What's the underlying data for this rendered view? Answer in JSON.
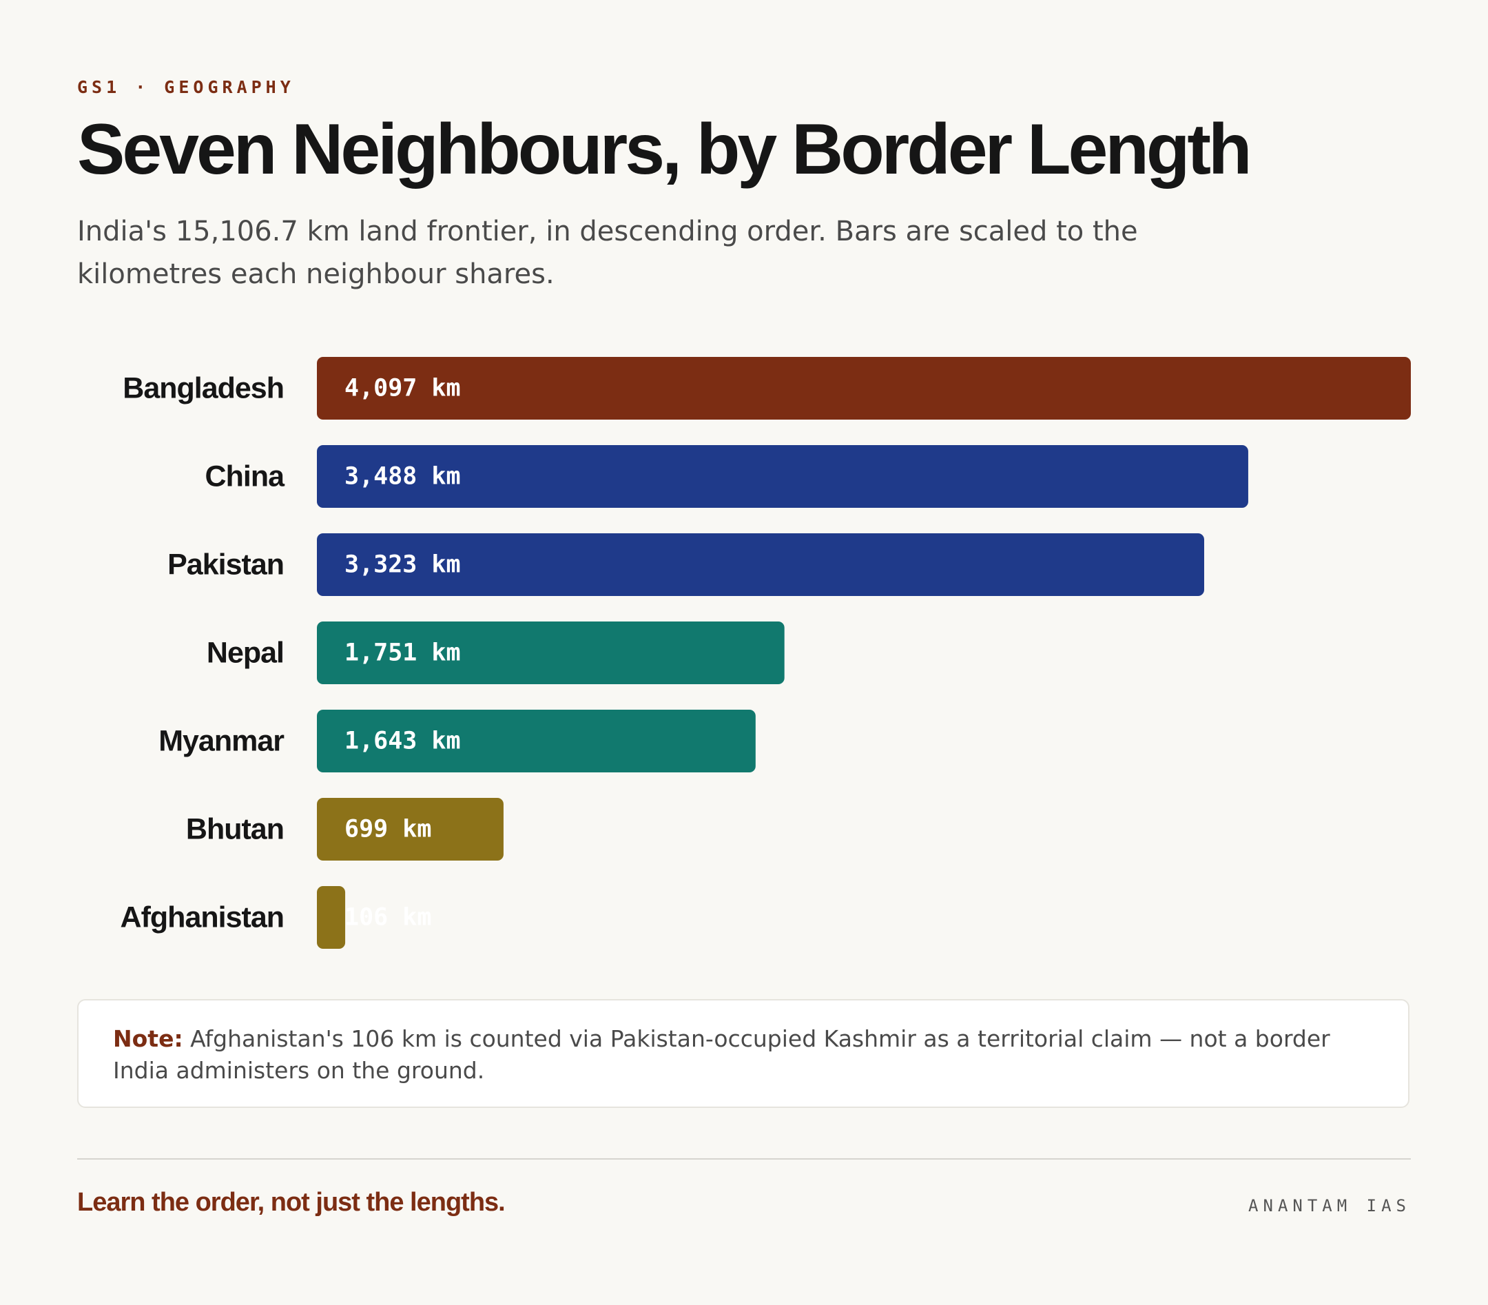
{
  "header": {
    "eyebrow": "GS1 · GEOGRAPHY",
    "title": "Seven Neighbours, by Border Length",
    "subtitle": "India's 15,106.7 km land frontier, in descending order. Bars are scaled to the kilometres each neighbour shares."
  },
  "chart_data": {
    "type": "bar",
    "orientation": "horizontal",
    "categories": [
      "Bangladesh",
      "China",
      "Pakistan",
      "Nepal",
      "Myanmar",
      "Bhutan",
      "Afghanistan"
    ],
    "values": [
      4097,
      3488,
      3323,
      1751,
      1643,
      699,
      106
    ],
    "value_labels": [
      "4,097 km",
      "3,488 km",
      "3,323 km",
      "1,751 km",
      "1,643 km",
      "699 km",
      "106 km"
    ],
    "unit": "km",
    "colors": [
      "#7c2d13",
      "#1f3a8a",
      "#1f3a8a",
      "#11796e",
      "#11796e",
      "#8c7219",
      "#8c7219"
    ],
    "grid": false,
    "legend": "none"
  },
  "note": {
    "label": "Note:",
    "text": "Afghanistan's 106 km is counted via Pakistan-occupied Kashmir as a territorial claim — not a border India administers on the ground."
  },
  "footer": {
    "tagline": "Learn the order, not just the lengths.",
    "brand": "ANANTAM IAS"
  },
  "colors": {
    "background": "#f9f8f4",
    "accent": "#7c2d13",
    "text": "#161616",
    "muted": "#4a4a4a"
  }
}
